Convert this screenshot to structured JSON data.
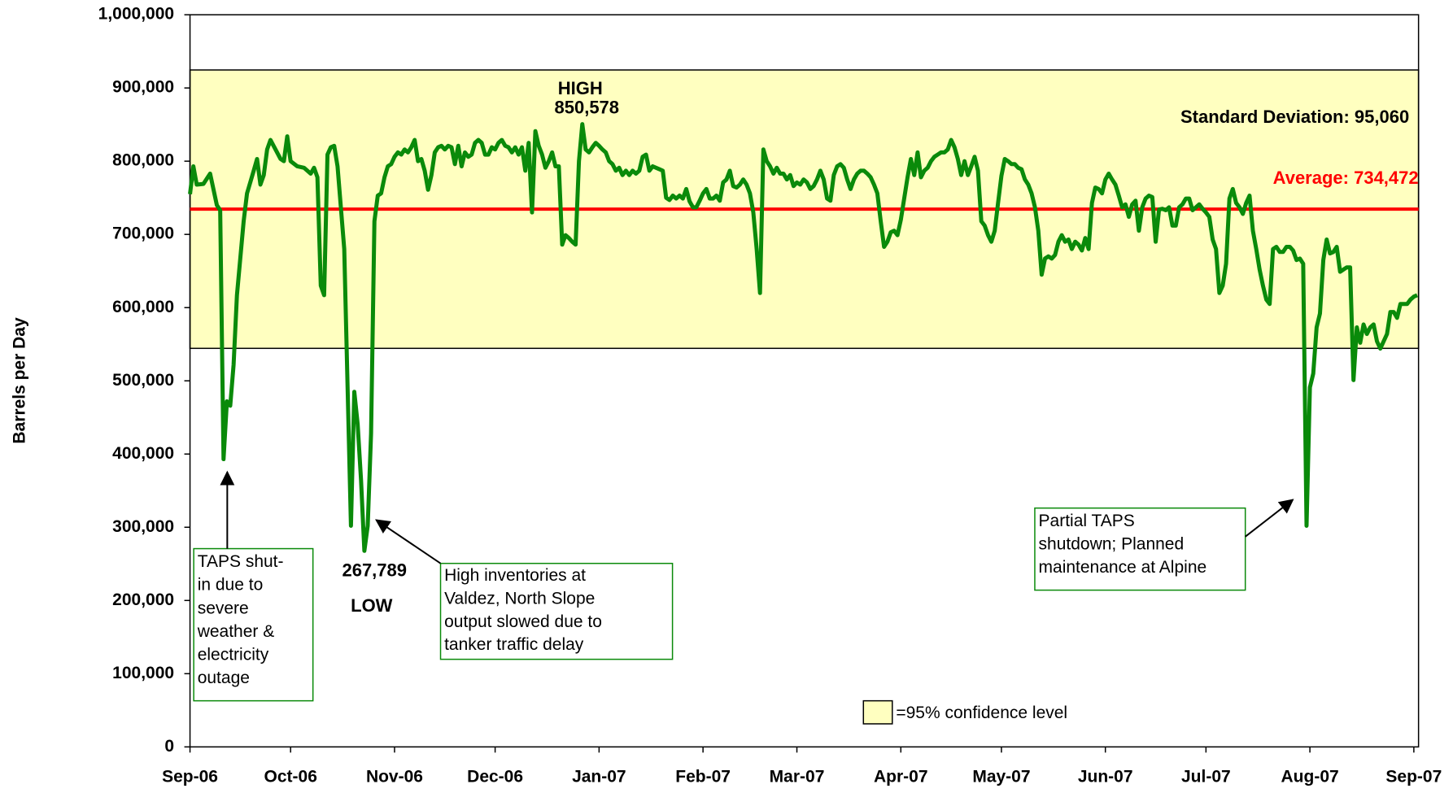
{
  "chart_data": {
    "type": "line",
    "y_label": "Barrels per Day",
    "xlim": [
      0,
      366.4
    ],
    "xticks": [
      {
        "value": 0,
        "label": "Sep-06"
      },
      {
        "value": 30,
        "label": "Oct-06"
      },
      {
        "value": 61,
        "label": "Nov-06"
      },
      {
        "value": 91,
        "label": "Dec-06"
      },
      {
        "value": 122,
        "label": "Jan-07"
      },
      {
        "value": 153,
        "label": "Feb-07"
      },
      {
        "value": 181,
        "label": "Mar-07"
      },
      {
        "value": 212,
        "label": "Apr-07"
      },
      {
        "value": 242,
        "label": "May-07"
      },
      {
        "value": 273,
        "label": "Jun-07"
      },
      {
        "value": 303,
        "label": "Jul-07"
      },
      {
        "value": 334,
        "label": "Aug-07"
      },
      {
        "value": 365,
        "label": "Sep-07"
      }
    ],
    "ylim": [
      0,
      1000000
    ],
    "yticks": [
      0,
      {
        "value": 100000,
        "label": "100,000"
      },
      {
        "value": 200000,
        "label": "200,000"
      },
      {
        "value": 300000,
        "label": "300,000"
      },
      {
        "value": 400000,
        "label": "400,000"
      },
      {
        "value": 500000,
        "label": "500,000"
      },
      {
        "value": 600000,
        "label": "600,000"
      },
      {
        "value": 700000,
        "label": "700,000"
      },
      {
        "value": 800000,
        "label": "800,000"
      },
      {
        "value": 900000,
        "label": "900,000"
      },
      {
        "value": 1000000,
        "label": "1,000,000"
      }
    ],
    "x": [
      0,
      1,
      2,
      4,
      6,
      8,
      9,
      10,
      11,
      12,
      13,
      14,
      16,
      17,
      19,
      20,
      21,
      22,
      23,
      24,
      27,
      28,
      29,
      30,
      32,
      34,
      36,
      37,
      38,
      39,
      40,
      41,
      42,
      43,
      44,
      46,
      47,
      48,
      49,
      50,
      51,
      52,
      53,
      54,
      55,
      56,
      57,
      58,
      59,
      60,
      61,
      62,
      63,
      64,
      65,
      66,
      67,
      68,
      69,
      70,
      71,
      72,
      73,
      74,
      75,
      76,
      77,
      78,
      79,
      80,
      81,
      82,
      83,
      84,
      85,
      86,
      87,
      88,
      89,
      90,
      91,
      92,
      93,
      94,
      95,
      96,
      97,
      98,
      99,
      100,
      101,
      102,
      103,
      104,
      105,
      106,
      107,
      108,
      109,
      110,
      111,
      112,
      113,
      114,
      115,
      116,
      117,
      118,
      119,
      120,
      121,
      122,
      123,
      124,
      125,
      126,
      127,
      128,
      129,
      130,
      131,
      132,
      133,
      134,
      135,
      136,
      137,
      138,
      139,
      140,
      141,
      142,
      143,
      144,
      145,
      146,
      147,
      148,
      149,
      150,
      151,
      152,
      153,
      154,
      155,
      156,
      157,
      158,
      159,
      160,
      161,
      162,
      163,
      164,
      165,
      166,
      167,
      168,
      169,
      170,
      171,
      172,
      173,
      174,
      175,
      176,
      177,
      178,
      179,
      180,
      181,
      182,
      183,
      184,
      185,
      186,
      187,
      188,
      189,
      190,
      191,
      192,
      193,
      194,
      195,
      196,
      197,
      198,
      199,
      200,
      201,
      202,
      203,
      204,
      205,
      206,
      207,
      208,
      209,
      210,
      211,
      212,
      213,
      214,
      215,
      216,
      217,
      218,
      219,
      220,
      221,
      222,
      223,
      224,
      225,
      226,
      227,
      228,
      229,
      230,
      231,
      232,
      233,
      234,
      235,
      236,
      237,
      238,
      239,
      240,
      241,
      242,
      243,
      244,
      245,
      246,
      247,
      248,
      249,
      250,
      251,
      252,
      253,
      254,
      255,
      256,
      257,
      258,
      259,
      260,
      261,
      262,
      263,
      264,
      265,
      266,
      267,
      268,
      269,
      270,
      271,
      272,
      273,
      274,
      275,
      276,
      277,
      278,
      279,
      280,
      281,
      282,
      283,
      284,
      285,
      286,
      287,
      288,
      289,
      290,
      291,
      292,
      293,
      294,
      295,
      296,
      297,
      298,
      299,
      300,
      301,
      302,
      303,
      304,
      305,
      306,
      307,
      308,
      309,
      310,
      311,
      312,
      313,
      314,
      315,
      316,
      317,
      318,
      319,
      320,
      321,
      322,
      323,
      324,
      325,
      326,
      327,
      328,
      329,
      330,
      331,
      332,
      333,
      334,
      335,
      336,
      337,
      338,
      339,
      340,
      341,
      342,
      343,
      344,
      345,
      346,
      347,
      348,
      349,
      350,
      351,
      352,
      353,
      354,
      355,
      356,
      357,
      358,
      359,
      360,
      361,
      362,
      363,
      364,
      365,
      366
    ],
    "series": [
      {
        "name": "Barrels per Day",
        "color": "#0a8a0a",
        "values": [
          755000,
          793000,
          768000,
          769000,
          783000,
          740000,
          733000,
          393000,
          472000,
          466000,
          522000,
          617000,
          718000,
          756000,
          787000,
          803000,
          768000,
          781000,
          816000,
          829000,
          803000,
          800000,
          834000,
          800000,
          793000,
          791000,
          783000,
          791000,
          778000,
          630000,
          617000,
          809000,
          819000,
          821000,
          793000,
          680000,
          491000,
          302000,
          485000,
          441000,
          365000,
          267789,
          302000,
          428000,
          718000,
          753000,
          756000,
          778000,
          793000,
          796000,
          806000,
          812000,
          809000,
          816000,
          812000,
          819000,
          829000,
          800000,
          803000,
          787000,
          761000,
          781000,
          812000,
          819000,
          821000,
          816000,
          821000,
          819000,
          796000,
          821000,
          793000,
          812000,
          806000,
          809000,
          825000,
          829000,
          825000,
          809000,
          809000,
          819000,
          816000,
          825000,
          829000,
          821000,
          819000,
          812000,
          819000,
          809000,
          819000,
          787000,
          825000,
          730000,
          841000,
          821000,
          809000,
          791000,
          800000,
          812000,
          793000,
          793000,
          686000,
          699000,
          695000,
          690000,
          686000,
          800000,
          850578,
          816000,
          812000,
          819000,
          825000,
          821000,
          816000,
          812000,
          800000,
          796000,
          787000,
          791000,
          781000,
          787000,
          781000,
          787000,
          783000,
          787000,
          806000,
          809000,
          787000,
          793000,
          791000,
          789000,
          787000,
          750000,
          747000,
          753000,
          749000,
          753000,
          749000,
          762000,
          745000,
          737000,
          737000,
          746000,
          756000,
          762000,
          749000,
          749000,
          753000,
          746000,
          771000,
          775000,
          787000,
          766000,
          764000,
          768000,
          775000,
          768000,
          756000,
          730000,
          680000,
          620000,
          816000,
          800000,
          793000,
          783000,
          791000,
          783000,
          783000,
          775000,
          781000,
          766000,
          771000,
          768000,
          775000,
          771000,
          762000,
          766000,
          775000,
          787000,
          775000,
          749000,
          746000,
          781000,
          793000,
          796000,
          791000,
          775000,
          762000,
          775000,
          783000,
          787000,
          787000,
          783000,
          778000,
          768000,
          756000,
          718000,
          683000,
          690000,
          703000,
          705000,
          699000,
          720000,
          749000,
          778000,
          803000,
          781000,
          812000,
          778000,
          787000,
          791000,
          800000,
          806000,
          809000,
          812000,
          812000,
          816000,
          829000,
          819000,
          803000,
          781000,
          800000,
          781000,
          793000,
          806000,
          787000,
          718000,
          712000,
          699000,
          690000,
          705000,
          743000,
          780000,
          803000,
          800000,
          796000,
          796000,
          791000,
          789000,
          775000,
          768000,
          756000,
          737000,
          705000,
          645000,
          667000,
          670000,
          667000,
          672000,
          690000,
          699000,
          690000,
          693000,
          680000,
          690000,
          686000,
          678000,
          695000,
          680000,
          743000,
          764000,
          762000,
          756000,
          775000,
          783000,
          775000,
          768000,
          753000,
          737000,
          741000,
          724000,
          741000,
          746000,
          705000,
          737000,
          749000,
          753000,
          751000,
          690000,
          734000,
          735000,
          733000,
          737000,
          712000,
          712000,
          737000,
          741000,
          749000,
          749000,
          733000,
          737000,
          741000,
          735000,
          730000,
          724000,
          693000,
          680000,
          620000,
          630000,
          660000,
          749000,
          762000,
          743000,
          737000,
          728000,
          743000,
          753000,
          705000,
          680000,
          652000,
          630000,
          611000,
          605000,
          680000,
          683000,
          676000,
          676000,
          683000,
          683000,
          678000,
          665000,
          667000,
          660000,
          302000,
          491000,
          510000,
          573000,
          592000,
          665000,
          693000,
          674000,
          676000,
          683000,
          649000,
          652000,
          655000,
          655000,
          501000,
          573000,
          552000,
          577000,
          564000,
          573000,
          577000,
          554000,
          544000,
          554000,
          564000,
          594000,
          594000,
          586000,
          605000,
          605000,
          605000,
          611000,
          615000,
          617000
        ]
      }
    ],
    "band": {
      "low": 544352,
      "high": 924592,
      "color": "#ffffc0",
      "legend": "=95% confidence level"
    },
    "average": {
      "value": 734472,
      "label": "Average: 734,472",
      "color": "#ff0000"
    },
    "std_dev_label": "Standard Deviation: 95,060",
    "annotations": [
      {
        "lines": [
          "HIGH",
          "850,578"
        ]
      },
      {
        "lines": [
          "267,789",
          "LOW"
        ]
      },
      {
        "lines": [
          "TAPS shut-",
          "in due to",
          "severe",
          "weather &",
          "electricity",
          "outage"
        ]
      },
      {
        "lines": [
          "High inventories at",
          "Valdez, North Slope",
          "output slowed due to",
          "tanker traffic delay"
        ]
      },
      {
        "lines": [
          "Partial TAPS",
          "shutdown; Planned",
          "maintenance at Alpine"
        ]
      }
    ]
  }
}
